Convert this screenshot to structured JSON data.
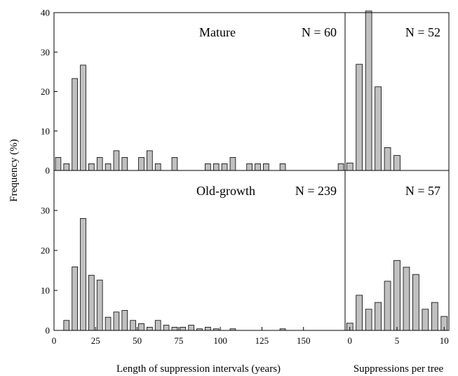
{
  "chart_data": {
    "type": "bar",
    "ylabel": "Frequency (%)",
    "left_xlabel": "Length of suppression intervals (years)",
    "right_xlabel": "Suppressions per tree",
    "left_xticks": [
      0,
      25,
      50,
      75,
      100,
      125,
      150
    ],
    "right_xticks": [
      0,
      5,
      10
    ],
    "panels": [
      {
        "id": "mature-length",
        "label": "Mature",
        "n_label": "N = 60",
        "ylim": [
          0,
          40
        ],
        "yticks": [
          0,
          10,
          20,
          30,
          40
        ],
        "xlim": [
          0,
          175
        ],
        "x": [
          2.5,
          7.5,
          12.5,
          17.5,
          22.5,
          27.5,
          32.5,
          37.5,
          42.5,
          47.5,
          52.5,
          57.5,
          62.5,
          67.5,
          72.5,
          77.5,
          82.5,
          87.5,
          92.5,
          97.5,
          102.5,
          107.5,
          112.5,
          117.5,
          122.5,
          127.5,
          132.5,
          137.5,
          142.5,
          147.5,
          152.5,
          157.5,
          162.5,
          167.5,
          172.5
        ],
        "values": [
          3.3,
          1.7,
          23.3,
          26.7,
          1.7,
          3.3,
          1.7,
          5.0,
          3.3,
          0,
          3.3,
          5.0,
          1.7,
          0,
          3.3,
          0,
          0,
          0,
          1.7,
          1.7,
          1.7,
          3.3,
          0,
          1.7,
          1.7,
          1.7,
          0,
          1.7,
          0,
          0,
          0,
          0,
          0,
          0,
          1.7
        ]
      },
      {
        "id": "mature-count",
        "label": "",
        "n_label": "N = 52",
        "ylim": [
          0,
          40
        ],
        "xlim": [
          -0.5,
          10.5
        ],
        "x": [
          0,
          1,
          2,
          3,
          4,
          5
        ],
        "values": [
          1.9,
          26.9,
          40.4,
          21.2,
          5.8,
          3.8
        ]
      },
      {
        "id": "oldgrowth-length",
        "label": "Old-growth",
        "n_label": "N = 239",
        "ylim": [
          0,
          40
        ],
        "yticks": [
          0,
          10,
          20,
          30
        ],
        "xlim": [
          0,
          175
        ],
        "x": [
          2.5,
          7.5,
          12.5,
          17.5,
          22.5,
          27.5,
          32.5,
          37.5,
          42.5,
          47.5,
          52.5,
          57.5,
          62.5,
          67.5,
          72.5,
          77.5,
          82.5,
          87.5,
          92.5,
          97.5,
          102.5,
          107.5,
          112.5,
          117.5,
          122.5,
          127.5,
          132.5,
          137.5,
          142.5,
          147.5,
          152.5,
          157.5,
          162.5,
          167.5,
          172.5
        ],
        "values": [
          0,
          2.5,
          15.9,
          28.0,
          13.8,
          12.6,
          3.3,
          4.6,
          5.0,
          2.5,
          1.7,
          0.8,
          2.5,
          1.3,
          0.8,
          0.8,
          1.3,
          0.4,
          0.8,
          0.4,
          0,
          0.4,
          0,
          0,
          0,
          0,
          0,
          0.4,
          0,
          0,
          0,
          0,
          0,
          0,
          0
        ]
      },
      {
        "id": "oldgrowth-count",
        "label": "",
        "n_label": "N = 57",
        "ylim": [
          0,
          40
        ],
        "xlim": [
          -0.5,
          10.5
        ],
        "x": [
          0,
          1,
          2,
          3,
          4,
          5,
          6,
          7,
          8,
          9,
          10
        ],
        "values": [
          1.8,
          8.8,
          5.3,
          7.0,
          12.3,
          17.5,
          15.8,
          14.0,
          5.3,
          7.0,
          3.5
        ]
      }
    ]
  }
}
